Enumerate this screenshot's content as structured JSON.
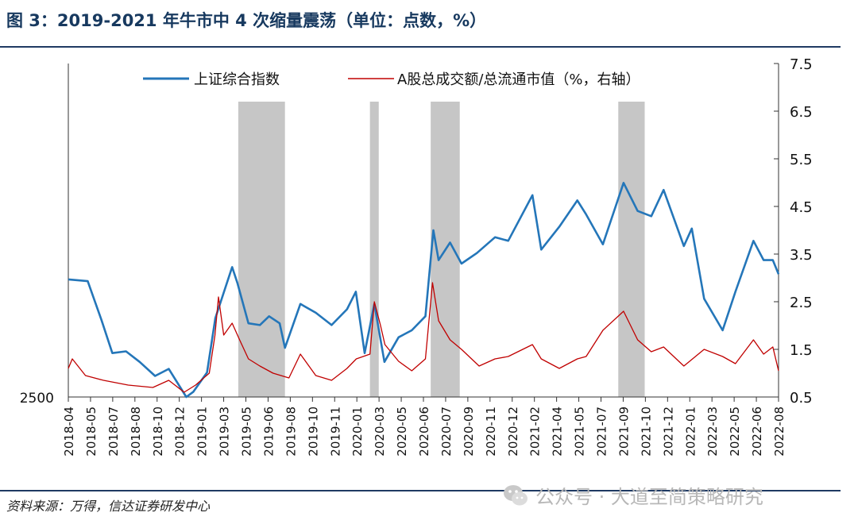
{
  "title": "图 3：2019-2021 年牛市中 4 次缩量震荡（单位：点数，%）",
  "source": "资料来源：万得，信达证券研发中心",
  "watermark": "公众号 · 大道至简策略研究",
  "colors": {
    "title": "#17395f",
    "index": "#2476b9",
    "turnover": "#c00000",
    "shade": "#c6c6c6",
    "axis": "#333333"
  },
  "chart_data": {
    "type": "line",
    "title": "",
    "x_tick_labels": [
      "2018-04",
      "2018-05",
      "2018-07",
      "2018-08",
      "2018-10",
      "2018-12",
      "2019-01",
      "2019-03",
      "2019-05",
      "2019-06",
      "2019-08",
      "2019-10",
      "2019-11",
      "2020-01",
      "2020-03",
      "2020-05",
      "2020-06",
      "2020-07",
      "2020-09",
      "2020-11",
      "2020-12",
      "2021-02",
      "2021-04",
      "2021-05",
      "2021-07",
      "2021-09",
      "2021-10",
      "2021-12",
      "2022-01",
      "2022-03",
      "2022-05",
      "2022-06",
      "2022-08"
    ],
    "x_range": [
      "2018-04",
      "2022-08"
    ],
    "left_axis": {
      "label": "点数",
      "min": 2500,
      "min_label": "2500"
    },
    "right_axis": {
      "label": "%",
      "min": 0.5,
      "max": 7.5,
      "ticks": [
        "7.5",
        "6.5",
        "5.5",
        "4.5",
        "3.5",
        "2.5",
        "1.5",
        "0.5"
      ]
    },
    "shaded_periods": [
      {
        "start": "2019-04-22",
        "end": "2019-08-06"
      },
      {
        "start": "2020-02-15",
        "end": "2020-03-06"
      },
      {
        "start": "2020-07-02",
        "end": "2020-09-06"
      },
      {
        "start": "2021-09-01",
        "end": "2021-10-31"
      }
    ],
    "series": [
      {
        "name": "上证综合指数",
        "axis": "left",
        "points": [
          [
            "2018-04-01",
            3170
          ],
          [
            "2018-05-15",
            3160
          ],
          [
            "2018-06-15",
            2940
          ],
          [
            "2018-07-10",
            2750
          ],
          [
            "2018-08-10",
            2760
          ],
          [
            "2018-09-10",
            2700
          ],
          [
            "2018-10-15",
            2620
          ],
          [
            "2018-11-15",
            2660
          ],
          [
            "2018-12-25",
            2500
          ],
          [
            "2019-01-10",
            2530
          ],
          [
            "2019-02-10",
            2640
          ],
          [
            "2019-03-01",
            2950
          ],
          [
            "2019-04-08",
            3240
          ],
          [
            "2019-04-20",
            3150
          ],
          [
            "2019-05-15",
            2920
          ],
          [
            "2019-06-10",
            2910
          ],
          [
            "2019-07-01",
            2960
          ],
          [
            "2019-07-25",
            2920
          ],
          [
            "2019-08-06",
            2780
          ],
          [
            "2019-09-10",
            3030
          ],
          [
            "2019-10-15",
            2980
          ],
          [
            "2019-11-20",
            2910
          ],
          [
            "2019-12-25",
            3000
          ],
          [
            "2020-01-14",
            3100
          ],
          [
            "2020-02-03",
            2750
          ],
          [
            "2020-02-25",
            3030
          ],
          [
            "2020-03-19",
            2700
          ],
          [
            "2020-04-20",
            2840
          ],
          [
            "2020-05-20",
            2880
          ],
          [
            "2020-06-20",
            2960
          ],
          [
            "2020-07-08",
            3450
          ],
          [
            "2020-07-20",
            3280
          ],
          [
            "2020-08-15",
            3380
          ],
          [
            "2020-09-10",
            3260
          ],
          [
            "2020-10-15",
            3320
          ],
          [
            "2020-11-25",
            3410
          ],
          [
            "2020-12-25",
            3390
          ],
          [
            "2021-02-18",
            3650
          ],
          [
            "2021-03-10",
            3340
          ],
          [
            "2021-04-20",
            3470
          ],
          [
            "2021-05-31",
            3620
          ],
          [
            "2021-06-20",
            3540
          ],
          [
            "2021-07-28",
            3370
          ],
          [
            "2021-09-13",
            3720
          ],
          [
            "2021-10-15",
            3560
          ],
          [
            "2021-11-15",
            3530
          ],
          [
            "2021-12-13",
            3680
          ],
          [
            "2022-01-28",
            3360
          ],
          [
            "2022-02-15",
            3460
          ],
          [
            "2022-03-15",
            3060
          ],
          [
            "2022-04-26",
            2880
          ],
          [
            "2022-05-25",
            3100
          ],
          [
            "2022-07-05",
            3390
          ],
          [
            "2022-07-28",
            3280
          ],
          [
            "2022-08-18",
            3280
          ],
          [
            "2022-08-31",
            3200
          ]
        ]
      },
      {
        "name": "A股总成交额/总流通市值（%，右轴）",
        "axis": "right",
        "points": [
          [
            "2018-04-01",
            1.1
          ],
          [
            "2018-04-10",
            1.3
          ],
          [
            "2018-05-10",
            0.95
          ],
          [
            "2018-06-20",
            0.85
          ],
          [
            "2018-08-15",
            0.75
          ],
          [
            "2018-10-10",
            0.7
          ],
          [
            "2018-11-15",
            0.85
          ],
          [
            "2018-12-20",
            0.6
          ],
          [
            "2019-01-15",
            0.75
          ],
          [
            "2019-02-15",
            1.0
          ],
          [
            "2019-02-28",
            1.8
          ],
          [
            "2019-03-08",
            2.6
          ],
          [
            "2019-03-20",
            1.8
          ],
          [
            "2019-04-08",
            2.05
          ],
          [
            "2019-04-25",
            1.7
          ],
          [
            "2019-05-15",
            1.3
          ],
          [
            "2019-06-10",
            1.15
          ],
          [
            "2019-07-10",
            1.0
          ],
          [
            "2019-08-15",
            0.9
          ],
          [
            "2019-09-10",
            1.4
          ],
          [
            "2019-10-15",
            0.95
          ],
          [
            "2019-11-20",
            0.85
          ],
          [
            "2019-12-25",
            1.1
          ],
          [
            "2020-01-15",
            1.3
          ],
          [
            "2020-02-15",
            1.4
          ],
          [
            "2020-02-25",
            2.5
          ],
          [
            "2020-03-10",
            2.0
          ],
          [
            "2020-03-20",
            1.6
          ],
          [
            "2020-04-20",
            1.25
          ],
          [
            "2020-05-20",
            1.05
          ],
          [
            "2020-06-20",
            1.3
          ],
          [
            "2020-07-06",
            2.9
          ],
          [
            "2020-07-20",
            2.1
          ],
          [
            "2020-08-15",
            1.7
          ],
          [
            "2020-09-10",
            1.5
          ],
          [
            "2020-10-20",
            1.15
          ],
          [
            "2020-11-25",
            1.3
          ],
          [
            "2020-12-25",
            1.35
          ],
          [
            "2021-02-18",
            1.6
          ],
          [
            "2021-03-10",
            1.3
          ],
          [
            "2021-04-20",
            1.1
          ],
          [
            "2021-05-31",
            1.3
          ],
          [
            "2021-06-20",
            1.35
          ],
          [
            "2021-07-28",
            1.9
          ],
          [
            "2021-09-13",
            2.3
          ],
          [
            "2021-10-15",
            1.7
          ],
          [
            "2021-11-15",
            1.45
          ],
          [
            "2021-12-13",
            1.55
          ],
          [
            "2022-01-28",
            1.15
          ],
          [
            "2022-03-15",
            1.5
          ],
          [
            "2022-04-26",
            1.35
          ],
          [
            "2022-05-25",
            1.2
          ],
          [
            "2022-07-05",
            1.7
          ],
          [
            "2022-07-28",
            1.4
          ],
          [
            "2022-08-18",
            1.55
          ],
          [
            "2022-08-31",
            1.05
          ]
        ]
      }
    ]
  }
}
